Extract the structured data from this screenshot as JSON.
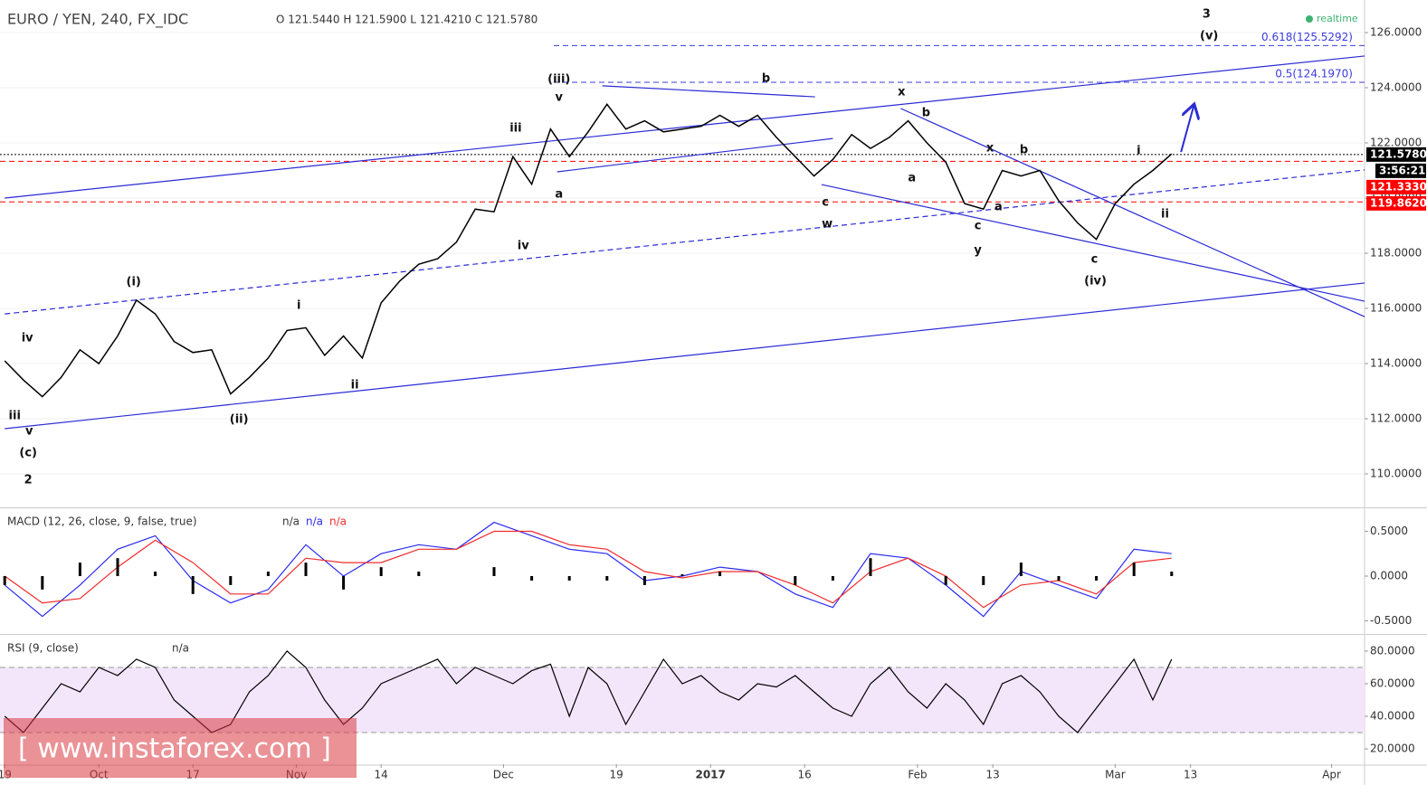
{
  "watermark": "[ www.instaforex.com ]",
  "chart_data": [
    {
      "type": "line",
      "title": "EURO / YEN, 240, FX_IDC",
      "ohlc_text": "O 121.5440 H 121.5900 L 121.4210 C 121.5780",
      "status": "realtime",
      "countdown": "3:56:21",
      "xlim": [
        -0.5,
        144.5
      ],
      "ylim": [
        108.82,
        127.18
      ],
      "yticks": [
        {
          "value": 110,
          "label": "110.0000"
        },
        {
          "value": 112,
          "label": "112.0000"
        },
        {
          "value": 114,
          "label": "114.0000"
        },
        {
          "value": 116,
          "label": "116.0000"
        },
        {
          "value": 118,
          "label": "118.0000"
        },
        {
          "value": 120,
          "label": "120.0000"
        },
        {
          "value": 122,
          "label": "122.0000"
        },
        {
          "value": 124,
          "label": "124.0000"
        },
        {
          "value": 126,
          "label": "126.0000"
        }
      ],
      "grid": true,
      "x": [
        0,
        2,
        4,
        6,
        8,
        10,
        12,
        14,
        16,
        18,
        20,
        22,
        24,
        26,
        28,
        30,
        32,
        34,
        36,
        38,
        40,
        42,
        44,
        46,
        48,
        50,
        52,
        54,
        56,
        58,
        60,
        62,
        64,
        66,
        68,
        70,
        72,
        74,
        76,
        78,
        80,
        82,
        84,
        86,
        88,
        90,
        92,
        94,
        96,
        98,
        100,
        102,
        104,
        106,
        108,
        110,
        112,
        114,
        116,
        118,
        120,
        122,
        124
      ],
      "series": [
        {
          "color": "#000000",
          "values": [
            114.1,
            113.4,
            112.8,
            113.5,
            114.5,
            114.0,
            115.0,
            116.3,
            115.8,
            114.8,
            114.4,
            114.5,
            112.9,
            113.5,
            114.2,
            115.2,
            115.3,
            114.3,
            115.0,
            114.2,
            116.2,
            117.0,
            117.6,
            117.8,
            118.4,
            119.6,
            119.5,
            121.5,
            120.5,
            122.5,
            121.5,
            122.4,
            123.4,
            122.5,
            122.8,
            122.4,
            122.5,
            122.6,
            123.0,
            122.6,
            123.0,
            122.2,
            121.5,
            120.8,
            121.4,
            122.3,
            121.8,
            122.2,
            122.8,
            122.0,
            121.3,
            119.8,
            119.6,
            121.0,
            120.8,
            121.0,
            119.9,
            119.1,
            118.5,
            119.8,
            120.5,
            121.0,
            121.6
          ]
        }
      ],
      "levels": [
        {
          "value": 125.5292,
          "label": "0.618(125.5292)",
          "color": "#3b3bdf",
          "style": "dashed",
          "side": "plot"
        },
        {
          "value": 124.197,
          "label": "0.5(124.1970)",
          "color": "#3b3bdf",
          "style": "dashed",
          "side": "plot"
        },
        {
          "value": 121.578,
          "label": "121.5780",
          "color": "#000000",
          "style": "dotted",
          "side": "axis"
        },
        {
          "value": 121.333,
          "label": "121.3330",
          "color": "#ff0000",
          "style": "dashed",
          "side": "axis"
        },
        {
          "value": 119.862,
          "label": "119.8620",
          "color": "#ff0000",
          "style": "dashed",
          "side": "axis"
        }
      ],
      "trendlines": [
        {
          "x": [
            0,
            144.5
          ],
          "y": [
            120.0,
            125.15
          ],
          "color": "#2b2bd6",
          "style": "solid"
        },
        {
          "x": [
            0,
            144.5
          ],
          "y": [
            111.64,
            116.92
          ],
          "color": "#2b2bd6",
          "style": "solid"
        },
        {
          "x": [
            0,
            144.5
          ],
          "y": [
            115.8,
            121.02
          ],
          "color": "#2b2bd6",
          "style": "dashed"
        },
        {
          "x": [
            58.7,
            88
          ],
          "y": [
            120.95,
            122.16
          ],
          "color": "#2b2bd6",
          "style": "solid"
        },
        {
          "x": [
            63.5,
            86.1
          ],
          "y": [
            124.07,
            123.67
          ],
          "color": "#2b2bd6",
          "style": "solid"
        },
        {
          "x": [
            86.8,
            144.5
          ],
          "y": [
            120.49,
            116.26
          ],
          "color": "#2b2bd6",
          "style": "solid"
        },
        {
          "x": [
            95.2,
            144.5
          ],
          "y": [
            123.25,
            115.7
          ],
          "color": "#2b2bd6",
          "style": "solid"
        },
        {
          "x": [
            125,
            126.4
          ],
          "y": [
            121.67,
            123.41
          ],
          "color": "#2b2bd6",
          "style": "arrow"
        }
      ],
      "annotations": [
        {
          "text": "3",
          "x": 127.7,
          "y": 126.66
        },
        {
          "text": "(v)",
          "x": 127.98,
          "y": 125.87
        },
        {
          "text": "(iii)",
          "x": 58.9,
          "y": 124.3
        },
        {
          "text": "v",
          "x": 58.9,
          "y": 123.64
        },
        {
          "text": "b",
          "x": 80.9,
          "y": 124.33
        },
        {
          "text": "x",
          "x": 95.3,
          "y": 123.84
        },
        {
          "text": "b",
          "x": 97.9,
          "y": 123.08
        },
        {
          "text": "x",
          "x": 104.7,
          "y": 121.8
        },
        {
          "text": "b",
          "x": 108.3,
          "y": 121.74
        },
        {
          "text": "iii",
          "x": 54.3,
          "y": 122.52
        },
        {
          "text": "i",
          "x": 120.5,
          "y": 121.7
        },
        {
          "text": "a",
          "x": 58.9,
          "y": 120.13
        },
        {
          "text": "a",
          "x": 96.4,
          "y": 120.72
        },
        {
          "text": "a",
          "x": 105.6,
          "y": 119.67
        },
        {
          "text": "ii",
          "x": 123.3,
          "y": 119.41
        },
        {
          "text": "c",
          "x": 87.2,
          "y": 119.84
        },
        {
          "text": "w",
          "x": 87.4,
          "y": 119.05
        },
        {
          "text": "c",
          "x": 103.4,
          "y": 118.98
        },
        {
          "text": "y",
          "x": 103.4,
          "y": 118.1
        },
        {
          "text": "iv",
          "x": 55.1,
          "y": 118.26
        },
        {
          "text": "c",
          "x": 115.8,
          "y": 117.77
        },
        {
          "text": "(iv)",
          "x": 115.9,
          "y": 116.98
        },
        {
          "text": "(i)",
          "x": 13.7,
          "y": 116.95
        },
        {
          "text": "i",
          "x": 31.25,
          "y": 116.1
        },
        {
          "text": "iv",
          "x": 2.4,
          "y": 114.92
        },
        {
          "text": "ii",
          "x": 37.2,
          "y": 113.21
        },
        {
          "text": "(ii)",
          "x": 24.9,
          "y": 111.97
        },
        {
          "text": "iii",
          "x": 1.06,
          "y": 112.1
        },
        {
          "text": "v",
          "x": 2.6,
          "y": 111.54
        },
        {
          "text": "(c)",
          "x": 2.5,
          "y": 110.75
        },
        {
          "text": "2",
          "x": 2.5,
          "y": 109.77
        }
      ]
    },
    {
      "type": "macd",
      "title": "MACD (12, 26, close, 9, false, true)",
      "status_labels": [
        "n/a",
        "n/a",
        "n/a"
      ],
      "xlim": [
        -0.5,
        144.5
      ],
      "ylim": [
        -0.636,
        0.747
      ],
      "yticks": [
        {
          "value": 0.5,
          "label": "0.5000"
        },
        {
          "value": 0,
          "label": "0.0000"
        },
        {
          "value": -0.5,
          "label": "-0.5000"
        }
      ],
      "x": [
        0,
        4,
        8,
        12,
        16,
        20,
        24,
        28,
        32,
        36,
        40,
        44,
        48,
        52,
        56,
        60,
        64,
        68,
        72,
        76,
        80,
        84,
        88,
        92,
        96,
        100,
        104,
        108,
        112,
        116,
        120,
        124
      ],
      "series": [
        {
          "color": "#2b2bf0",
          "kind": "line",
          "values": [
            -0.1,
            -0.45,
            -0.1,
            0.3,
            0.45,
            -0.05,
            -0.3,
            -0.15,
            0.35,
            0.0,
            0.25,
            0.35,
            0.3,
            0.6,
            0.45,
            0.3,
            0.25,
            -0.05,
            0.0,
            0.1,
            0.05,
            -0.2,
            -0.35,
            0.25,
            0.2,
            -0.1,
            -0.45,
            0.05,
            -0.1,
            -0.25,
            0.3,
            0.25
          ]
        },
        {
          "color": "#f02b2b",
          "kind": "line",
          "values": [
            0.0,
            -0.3,
            -0.25,
            0.1,
            0.4,
            0.15,
            -0.2,
            -0.2,
            0.2,
            0.15,
            0.15,
            0.3,
            0.3,
            0.5,
            0.5,
            0.35,
            0.3,
            0.05,
            -0.02,
            0.05,
            0.05,
            -0.1,
            -0.3,
            0.05,
            0.2,
            0.0,
            -0.35,
            -0.1,
            -0.05,
            -0.2,
            0.15,
            0.2
          ]
        },
        {
          "color": "#000000",
          "kind": "bar",
          "values": [
            -0.1,
            -0.15,
            0.15,
            0.2,
            0.05,
            -0.2,
            -0.1,
            0.05,
            0.15,
            -0.15,
            0.1,
            0.05,
            0,
            0.1,
            -0.05,
            -0.05,
            -0.05,
            -0.1,
            0.02,
            0.05,
            0,
            -0.1,
            -0.05,
            0.2,
            0,
            -0.1,
            -0.1,
            0.15,
            -0.05,
            -0.05,
            0.15,
            0.05
          ]
        }
      ]
    },
    {
      "type": "line",
      "title": "RSI (9, close)",
      "status_labels": [
        "n/a"
      ],
      "xlim": [
        -0.5,
        144.5
      ],
      "ylim": [
        10.6,
        89.4
      ],
      "yticks": [
        {
          "value": 20,
          "label": "20.0000"
        },
        {
          "value": 40,
          "label": "40.0000"
        },
        {
          "value": 60,
          "label": "60.0000"
        },
        {
          "value": 80,
          "label": "80.0000"
        }
      ],
      "band": [
        30,
        70
      ],
      "xticks": [
        {
          "value": 0,
          "label": "19"
        },
        {
          "value": 10,
          "label": "Oct"
        },
        {
          "value": 20,
          "label": "17"
        },
        {
          "value": 31,
          "label": "Nov"
        },
        {
          "value": 40,
          "label": "14"
        },
        {
          "value": 53,
          "label": "Dec"
        },
        {
          "value": 65,
          "label": "19"
        },
        {
          "value": 75,
          "label": "2017"
        },
        {
          "value": 85,
          "label": "16"
        },
        {
          "value": 97,
          "label": "Feb"
        },
        {
          "value": 105,
          "label": "13"
        },
        {
          "value": 118,
          "label": "Mar"
        },
        {
          "value": 126,
          "label": "13"
        },
        {
          "value": 141,
          "label": "Apr"
        }
      ],
      "x": [
        0,
        2,
        4,
        6,
        8,
        10,
        12,
        14,
        16,
        18,
        20,
        22,
        24,
        26,
        28,
        30,
        32,
        34,
        36,
        38,
        40,
        42,
        44,
        46,
        48,
        50,
        52,
        54,
        56,
        58,
        60,
        62,
        64,
        66,
        68,
        70,
        72,
        74,
        76,
        78,
        80,
        82,
        84,
        86,
        88,
        90,
        92,
        94,
        96,
        98,
        100,
        102,
        104,
        106,
        108,
        110,
        112,
        114,
        116,
        118,
        120,
        122,
        124
      ],
      "series": [
        {
          "color": "#000000",
          "values": [
            40,
            30,
            45,
            60,
            55,
            70,
            65,
            75,
            70,
            50,
            40,
            30,
            35,
            55,
            65,
            80,
            70,
            50,
            35,
            45,
            60,
            65,
            70,
            75,
            60,
            70,
            65,
            60,
            68,
            72,
            40,
            70,
            60,
            35,
            55,
            75,
            60,
            65,
            55,
            50,
            60,
            58,
            65,
            55,
            45,
            40,
            60,
            70,
            55,
            45,
            60,
            50,
            35,
            60,
            65,
            55,
            40,
            30,
            45,
            60,
            75,
            50,
            75
          ]
        }
      ]
    }
  ]
}
